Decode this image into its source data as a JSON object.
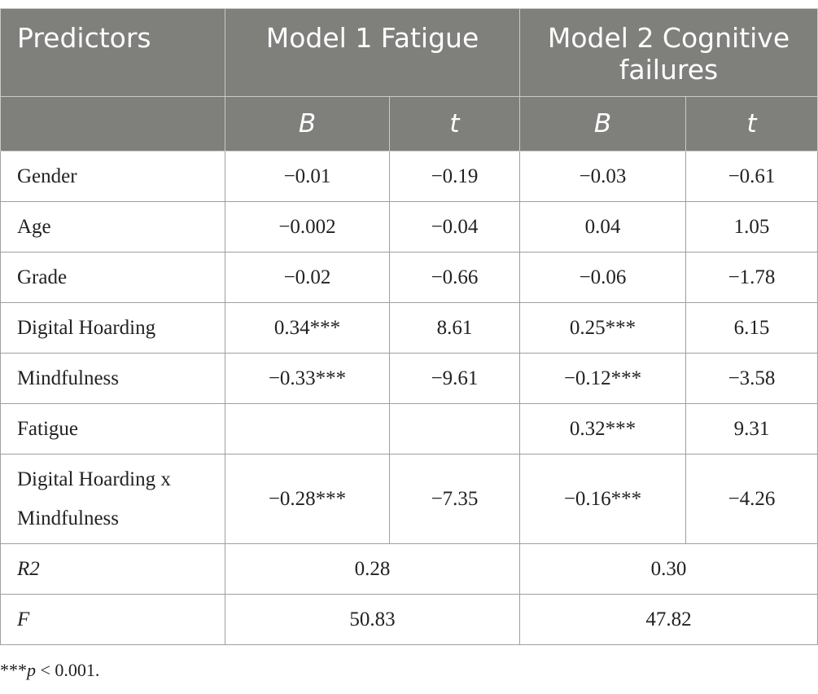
{
  "header": {
    "predictors": "Predictors",
    "model1": "Model 1 Fatigue",
    "model2": "Model 2 Cognitive failures",
    "sub": [
      "B",
      "t",
      "B",
      "t"
    ]
  },
  "rows": [
    {
      "label": "Gender",
      "m1_b": "−0.01",
      "m1_t": "−0.19",
      "m2_b": "−0.03",
      "m2_t": "−0.61"
    },
    {
      "label": "Age",
      "m1_b": "−0.002",
      "m1_t": "−0.04",
      "m2_b": "0.04",
      "m2_t": "1.05"
    },
    {
      "label": "Grade",
      "m1_b": "−0.02",
      "m1_t": "−0.66",
      "m2_b": "−0.06",
      "m2_t": "−1.78"
    },
    {
      "label": "Digital Hoarding",
      "m1_b": "0.34***",
      "m1_t": "8.61",
      "m2_b": "0.25***",
      "m2_t": "6.15"
    },
    {
      "label": "Mindfulness",
      "m1_b": "−0.33***",
      "m1_t": "−9.61",
      "m2_b": "−0.12***",
      "m2_t": "−3.58"
    },
    {
      "label": "Fatigue",
      "m1_b": "",
      "m1_t": "",
      "m2_b": "0.32***",
      "m2_t": "9.31"
    },
    {
      "label": "Digital Hoarding x Mindfulness",
      "m1_b": "−0.28***",
      "m1_t": "−7.35",
      "m2_b": "−0.16***",
      "m2_t": "−4.26"
    }
  ],
  "summary": [
    {
      "label": "R2",
      "m1": "0.28",
      "m2": "0.30"
    },
    {
      "label": "F",
      "m1": "50.83",
      "m2": "47.82"
    }
  ],
  "footnote": {
    "stars": "***",
    "p": "p",
    "rest": " < 0.001."
  }
}
